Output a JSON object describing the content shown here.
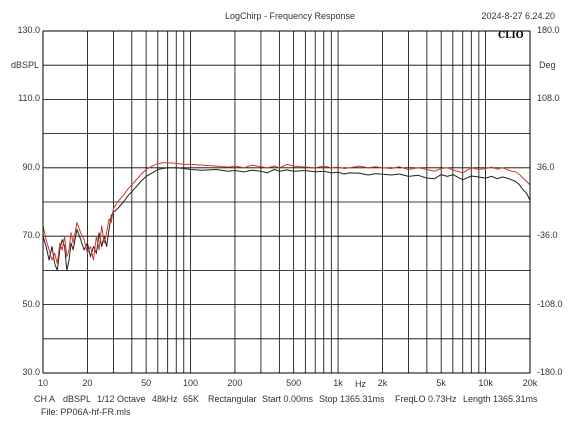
{
  "header": {
    "title": "LogChirp - Frequency Response",
    "timestamp": "2024-8-27 6.24.20",
    "logo": "CLIO"
  },
  "footer": {
    "channel": "CH A",
    "unit": "dBSPL",
    "smoothing": "1/12 Octave",
    "sample_rate": "48kHz",
    "size": "65K",
    "window": "Rectangular",
    "start": "Start 0.00ms",
    "stop": "Stop 1365.31ms",
    "freqlo": "FreqLO 0.73Hz",
    "length": "Length 1365.31ms",
    "file": "File: PP06A-hf-FR.mls"
  },
  "chart_data": {
    "type": "line",
    "title": "LogChirp - Frequency Response",
    "xlabel": "Hz",
    "ylabel": "dBSPL",
    "y2label": "Deg",
    "xscale": "log",
    "xlim": [
      10,
      20000
    ],
    "ylim": [
      30,
      130
    ],
    "y2lim": [
      -180,
      180
    ],
    "grid": true,
    "x_ticks": [
      {
        "v": 10,
        "label": "10"
      },
      {
        "v": 20,
        "label": "20"
      },
      {
        "v": 50,
        "label": "50"
      },
      {
        "v": 100,
        "label": "100"
      },
      {
        "v": 200,
        "label": "200"
      },
      {
        "v": 500,
        "label": "500"
      },
      {
        "v": 1000,
        "label": "1k"
      },
      {
        "v": 2000,
        "label": "2k"
      },
      {
        "v": 5000,
        "label": "5k"
      },
      {
        "v": 10000,
        "label": "10k"
      },
      {
        "v": 20000,
        "label": "20k"
      }
    ],
    "y_ticks": [
      {
        "v": 130,
        "label": "130.0"
      },
      {
        "v": 110,
        "label": "110.0"
      },
      {
        "v": 90,
        "label": "90.0"
      },
      {
        "v": 70,
        "label": "70.0"
      },
      {
        "v": 50,
        "label": "50.0"
      },
      {
        "v": 30,
        "label": "30.0"
      }
    ],
    "y2_ticks": [
      {
        "v": 180,
        "label": "180.0"
      },
      {
        "v": 108,
        "label": "108.0"
      },
      {
        "v": 36,
        "label": "36.0"
      },
      {
        "v": -36,
        "label": "-36.0"
      },
      {
        "v": -108,
        "label": "-108.0"
      },
      {
        "v": -180,
        "label": "-180.0"
      }
    ],
    "series": [
      {
        "color": "#222222",
        "points": [
          [
            10,
            70
          ],
          [
            10.5,
            67
          ],
          [
            11,
            63
          ],
          [
            11.5,
            67
          ],
          [
            12,
            62
          ],
          [
            12.5,
            60
          ],
          [
            13,
            66
          ],
          [
            13.5,
            69
          ],
          [
            14,
            67
          ],
          [
            14.5,
            60
          ],
          [
            15,
            63
          ],
          [
            15.5,
            68
          ],
          [
            16,
            66
          ],
          [
            17,
            72
          ],
          [
            18,
            69
          ],
          [
            19,
            66
          ],
          [
            20,
            68
          ],
          [
            21,
            64
          ],
          [
            22,
            67
          ],
          [
            23,
            65
          ],
          [
            24,
            71
          ],
          [
            25,
            67
          ],
          [
            26,
            70
          ],
          [
            27,
            67
          ],
          [
            28,
            72
          ],
          [
            29,
            76
          ],
          [
            30,
            77
          ],
          [
            32,
            78
          ],
          [
            35,
            80
          ],
          [
            38,
            82
          ],
          [
            42,
            84
          ],
          [
            46,
            86
          ],
          [
            50,
            87.5
          ],
          [
            55,
            88.5
          ],
          [
            60,
            89.5
          ],
          [
            65,
            89.8
          ],
          [
            70,
            90
          ],
          [
            80,
            90
          ],
          [
            90,
            89.8
          ],
          [
            100,
            89.5
          ],
          [
            120,
            89.3
          ],
          [
            150,
            89.5
          ],
          [
            180,
            89
          ],
          [
            200,
            89.2
          ],
          [
            230,
            88.8
          ],
          [
            260,
            89.3
          ],
          [
            300,
            89
          ],
          [
            330,
            88.5
          ],
          [
            370,
            89.5
          ],
          [
            400,
            89
          ],
          [
            450,
            89.4
          ],
          [
            500,
            89
          ],
          [
            600,
            89.2
          ],
          [
            700,
            88.8
          ],
          [
            800,
            89
          ],
          [
            900,
            88.5
          ],
          [
            1000,
            88.7
          ],
          [
            1100,
            88.2
          ],
          [
            1200,
            88.5
          ],
          [
            1400,
            88.4
          ],
          [
            1600,
            87.9
          ],
          [
            1800,
            88.3
          ],
          [
            2000,
            88.1
          ],
          [
            2300,
            87.9
          ],
          [
            2600,
            88.2
          ],
          [
            3000,
            87.5
          ],
          [
            3500,
            87.8
          ],
          [
            4000,
            87
          ],
          [
            4500,
            86.8
          ],
          [
            5000,
            88
          ],
          [
            5500,
            87.5
          ],
          [
            6000,
            88
          ],
          [
            7000,
            86.5
          ],
          [
            8000,
            87.6
          ],
          [
            9000,
            87.3
          ],
          [
            10000,
            87
          ],
          [
            11000,
            87.5
          ],
          [
            12000,
            86.8
          ],
          [
            13000,
            87.3
          ],
          [
            14000,
            87
          ],
          [
            15000,
            86.5
          ],
          [
            16000,
            86
          ],
          [
            17000,
            85
          ],
          [
            18000,
            83.5
          ],
          [
            19000,
            82.5
          ],
          [
            20000,
            80.5
          ]
        ]
      },
      {
        "color": "#d0392b",
        "points": [
          [
            10,
            73
          ],
          [
            10.5,
            69
          ],
          [
            11,
            66
          ],
          [
            11.5,
            63
          ],
          [
            12,
            65
          ],
          [
            12.5,
            62
          ],
          [
            13,
            68
          ],
          [
            13.5,
            66
          ],
          [
            14,
            70
          ],
          [
            14.5,
            64
          ],
          [
            15,
            66
          ],
          [
            15.5,
            71
          ],
          [
            16,
            68
          ],
          [
            17,
            74
          ],
          [
            18,
            71
          ],
          [
            19,
            69
          ],
          [
            20,
            65
          ],
          [
            21,
            67
          ],
          [
            22,
            63
          ],
          [
            23,
            70
          ],
          [
            24,
            66
          ],
          [
            25,
            73
          ],
          [
            26,
            68
          ],
          [
            27,
            71
          ],
          [
            28,
            75
          ],
          [
            29,
            74
          ],
          [
            30,
            78
          ],
          [
            32,
            80
          ],
          [
            35,
            82
          ],
          [
            38,
            84
          ],
          [
            42,
            86
          ],
          [
            46,
            88
          ],
          [
            50,
            89.5
          ],
          [
            55,
            90.5
          ],
          [
            60,
            91.2
          ],
          [
            65,
            91.5
          ],
          [
            70,
            91.5
          ],
          [
            80,
            91.3
          ],
          [
            90,
            91
          ],
          [
            100,
            91
          ],
          [
            120,
            90.8
          ],
          [
            150,
            90.5
          ],
          [
            180,
            90.2
          ],
          [
            200,
            90.5
          ],
          [
            230,
            90
          ],
          [
            260,
            90.8
          ],
          [
            300,
            90.3
          ],
          [
            330,
            90
          ],
          [
            370,
            90.5
          ],
          [
            400,
            90
          ],
          [
            450,
            91
          ],
          [
            500,
            90.5
          ],
          [
            600,
            90.2
          ],
          [
            700,
            90
          ],
          [
            800,
            90.5
          ],
          [
            900,
            90
          ],
          [
            1000,
            90.2
          ],
          [
            1100,
            89.8
          ],
          [
            1200,
            90
          ],
          [
            1400,
            90.5
          ],
          [
            1600,
            90
          ],
          [
            1800,
            90.3
          ],
          [
            2000,
            90
          ],
          [
            2300,
            89.8
          ],
          [
            2600,
            90.3
          ],
          [
            3000,
            89.5
          ],
          [
            3500,
            90
          ],
          [
            4000,
            89.5
          ],
          [
            4500,
            89
          ],
          [
            5000,
            89.8
          ],
          [
            5500,
            90
          ],
          [
            6000,
            89.4
          ],
          [
            7000,
            88.5
          ],
          [
            8000,
            90
          ],
          [
            9000,
            89.5
          ],
          [
            10000,
            89.8
          ],
          [
            11000,
            90.2
          ],
          [
            12000,
            89.6
          ],
          [
            13000,
            90
          ],
          [
            14000,
            89.5
          ],
          [
            15000,
            89
          ],
          [
            16000,
            88.8
          ],
          [
            17000,
            88
          ],
          [
            18000,
            87
          ],
          [
            19000,
            86
          ],
          [
            20000,
            85
          ]
        ]
      }
    ]
  }
}
